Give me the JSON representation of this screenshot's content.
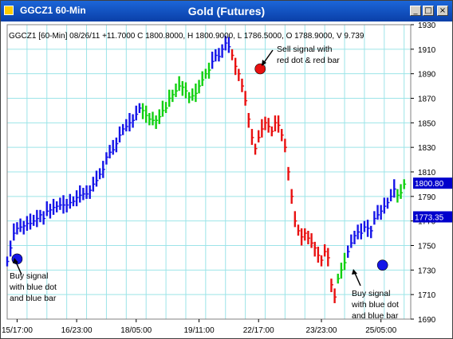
{
  "window": {
    "title": "GGCZ1 60-Min",
    "icon": "chart-icon",
    "buttons": {
      "minimize": "_",
      "maximize": "□",
      "close": "×"
    }
  },
  "chart_title": "Gold (Futures)",
  "info_line": "GGCZ1 [60-Min] 08/26/11  +11.7000 C 1800.8000, H 1800.9000, L 1786.5000, O 1788.9000, V 9.739",
  "colors": {
    "up": "#1515e8",
    "down": "#e81010",
    "neutral": "#10d010",
    "grid": "#9ce4e8",
    "axis_text": "#000000",
    "callout_bg": "#0000cc"
  },
  "annotations": {
    "sell": [
      "Sell signal with",
      "red dot & red bar"
    ],
    "buy_left": [
      "Buy signal",
      "with blue dot",
      "and blue bar"
    ],
    "buy_right": [
      "Buy signal",
      "with blue dot",
      "and blue bar"
    ]
  },
  "price_callouts": {
    "last": "1800.80",
    "marker": "1773.35"
  },
  "chart_data": {
    "type": "line",
    "title": "Gold (Futures)",
    "xlabel": "",
    "ylabel": "",
    "ylim": [
      1690,
      1930
    ],
    "y_ticks": [
      1930,
      1910,
      1890,
      1870,
      1850,
      1830,
      1810,
      1790,
      1770,
      1750,
      1730,
      1710,
      1690
    ],
    "x_ticks": [
      "15/17:00",
      "16/23:00",
      "18/05:00",
      "19/11:00",
      "22/17:00",
      "23/23:00",
      "25/05:00"
    ],
    "grid": true,
    "series": [
      {
        "color": "blue",
        "x": [
          0,
          2,
          4,
          6,
          8,
          10,
          12,
          14,
          16,
          18,
          20,
          22,
          24,
          26,
          28,
          30,
          32,
          34,
          36,
          38,
          40,
          42,
          44,
          46,
          48,
          50,
          52,
          54,
          56,
          58,
          60,
          62,
          64,
          66,
          68,
          70,
          72,
          74,
          76,
          78,
          80
        ],
        "y": [
          1737,
          1748,
          1760,
          1764,
          1765,
          1766,
          1768,
          1768,
          1770,
          1772,
          1775,
          1772,
          1778,
          1779,
          1781,
          1782,
          1783,
          1783,
          1783,
          1785,
          1786,
          1789,
          1791,
          1792,
          1792,
          1795,
          1800,
          1803,
          1808,
          1812,
          1822,
          1826,
          1828,
          1833,
          1840,
          1845,
          1847,
          1850,
          1852,
          1857,
          1862
        ]
      },
      {
        "color": "green",
        "x": [
          82,
          84,
          86,
          88,
          90,
          92,
          94,
          96,
          98,
          100,
          102,
          104,
          106,
          108,
          110,
          112,
          114,
          116,
          118,
          120,
          122
        ],
        "y": [
          1860,
          1856,
          1853,
          1852,
          1852,
          1855,
          1860,
          1862,
          1870,
          1873,
          1876,
          1880,
          1879,
          1876,
          1871,
          1872,
          1874,
          1880,
          1885,
          1890,
          1893
        ]
      },
      {
        "color": "blue",
        "x": [
          124,
          126,
          128,
          130,
          132,
          134
        ],
        "y": [
          1900,
          1905,
          1904,
          1910,
          1915,
          1912
        ]
      },
      {
        "color": "red",
        "x": [
          136,
          138,
          140,
          142,
          144,
          146,
          148,
          150,
          152,
          154,
          156,
          158,
          160,
          162,
          164,
          166,
          168,
          170,
          172,
          174,
          176
        ],
        "y": [
          1905,
          1896,
          1890,
          1880,
          1868,
          1853,
          1838,
          1829,
          1838,
          1845,
          1850,
          1847,
          1843,
          1850,
          1848,
          1840,
          1830,
          1810,
          1790,
          1770,
          1762
        ]
      },
      {
        "color": "red",
        "x": [
          178,
          180,
          182,
          184,
          186,
          188,
          190,
          192,
          194
        ],
        "y": [
          1757,
          1760,
          1756,
          1752,
          1748,
          1742,
          1738,
          1745,
          1740
        ]
      },
      {
        "color": "red",
        "x": [
          196,
          198
        ],
        "y": [
          1718,
          1708
        ]
      },
      {
        "color": "green",
        "x": [
          200,
          202,
          204
        ],
        "y": [
          1723,
          1730,
          1736
        ]
      },
      {
        "color": "blue",
        "x": [
          206,
          208,
          210,
          212,
          214,
          216,
          218,
          220,
          222,
          224,
          226,
          228,
          230,
          232,
          234
        ],
        "y": [
          1745,
          1752,
          1758,
          1761,
          1760,
          1765,
          1764,
          1762,
          1772,
          1775,
          1778,
          1782,
          1785,
          1790,
          1796
        ]
      },
      {
        "color": "green",
        "x": [
          236,
          238,
          240
        ],
        "y": [
          1791,
          1793,
          1800
        ]
      }
    ],
    "signal_dots": [
      {
        "label": "Buy",
        "color": "blue",
        "x_tick": "15/17:00",
        "y": 1739
      },
      {
        "label": "Sell",
        "color": "red",
        "x_tick": "22/17:00",
        "y": 1894
      },
      {
        "label": "Buy",
        "color": "blue",
        "x_tick": "25/05:00",
        "y": 1734
      }
    ]
  }
}
